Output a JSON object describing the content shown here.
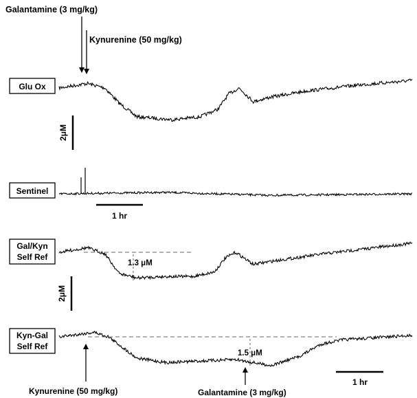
{
  "chart_data": {
    "type": "line",
    "annotations": {
      "top_drug_1": "Galantamine (3 mg/kg)",
      "top_drug_2": "Kynurenine (50 mg/kg)",
      "bottom_drug_1": "Kynurenine (50 mg/kg)",
      "bottom_drug_2": "Galantamine (3 mg/kg)",
      "scale_y_1": "2μM",
      "scale_y_2": "2μM",
      "scale_x_1": "1 hr",
      "scale_x_2": "1 hr",
      "drop_1": "1.3 μM",
      "drop_2": "1.5 μM"
    },
    "traces": [
      {
        "name": "Glu Ox",
        "label_lines": [
          "Glu Ox"
        ],
        "noise": 1.0,
        "keypoints": [
          [
            0,
            0
          ],
          [
            0.08,
            0.3
          ],
          [
            0.13,
            0.0
          ],
          [
            0.17,
            -1.0
          ],
          [
            0.22,
            -1.9
          ],
          [
            0.32,
            -2.1
          ],
          [
            0.4,
            -1.9
          ],
          [
            0.45,
            -1.4
          ],
          [
            0.48,
            -0.4
          ],
          [
            0.51,
            0.0
          ],
          [
            0.55,
            -0.9
          ],
          [
            0.6,
            -0.6
          ],
          [
            0.7,
            -0.2
          ],
          [
            0.85,
            0.2
          ],
          [
            1.0,
            0.5
          ]
        ]
      },
      {
        "name": "Sentinel",
        "label_lines": [
          "Sentinel"
        ],
        "noise": 0.6,
        "keypoints": [
          [
            0,
            0
          ],
          [
            0.3,
            0.1
          ],
          [
            0.6,
            -0.1
          ],
          [
            1.0,
            0.0
          ]
        ]
      },
      {
        "name": "Gal/Kyn Self Ref",
        "label_lines": [
          "Gal/Kyn",
          "Self Ref"
        ],
        "noise": 0.9,
        "keypoints": [
          [
            0,
            0
          ],
          [
            0.08,
            0.3
          ],
          [
            0.13,
            -0.1
          ],
          [
            0.17,
            -1.4
          ],
          [
            0.22,
            -1.7
          ],
          [
            0.3,
            -1.6
          ],
          [
            0.38,
            -1.6
          ],
          [
            0.44,
            -1.3
          ],
          [
            0.47,
            -0.4
          ],
          [
            0.5,
            0.0
          ],
          [
            0.55,
            -0.8
          ],
          [
            0.6,
            -0.6
          ],
          [
            0.75,
            -0.1
          ],
          [
            1.0,
            0.6
          ]
        ]
      },
      {
        "name": "Kyn-Gal Self Ref",
        "label_lines": [
          "Kyn-Gal",
          "Self Ref"
        ],
        "noise": 0.9,
        "keypoints": [
          [
            0,
            0
          ],
          [
            0.1,
            0.3
          ],
          [
            0.14,
            0.0
          ],
          [
            0.22,
            -1.4
          ],
          [
            0.3,
            -1.7
          ],
          [
            0.4,
            -1.6
          ],
          [
            0.5,
            -1.5
          ],
          [
            0.55,
            -1.7
          ],
          [
            0.6,
            -1.9
          ],
          [
            0.68,
            -1.3
          ],
          [
            0.74,
            -0.5
          ],
          [
            0.8,
            -0.2
          ],
          [
            1.0,
            0.1
          ]
        ]
      }
    ]
  }
}
